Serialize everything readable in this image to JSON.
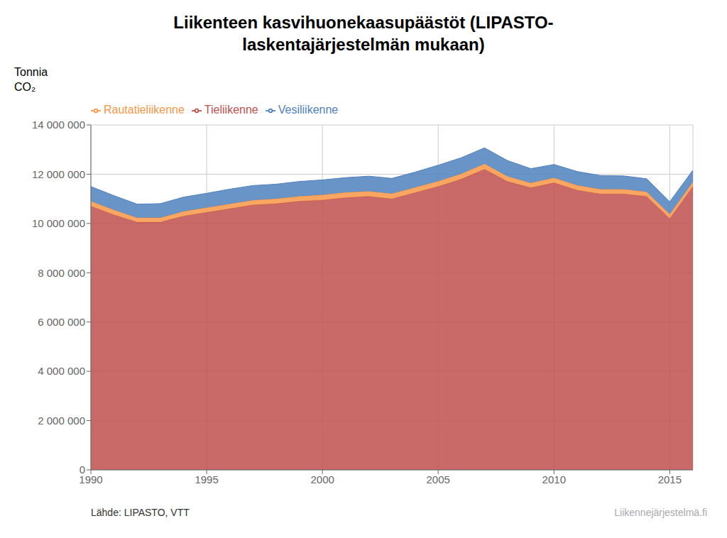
{
  "chart_data": {
    "type": "area",
    "stacked": true,
    "title": "Liikenteen kasvihuonekaasupäästöt (LIPASTO-\nlaskentajärjestelmän mukaan)",
    "y_label": "Tonnia\nCO₂",
    "annotations": [
      "Lähde: LIPASTO, VTT",
      "Liikennejärjestelmä.fi"
    ],
    "x": [
      1990,
      1991,
      1992,
      1993,
      1994,
      1995,
      1996,
      1997,
      1998,
      1999,
      2000,
      2001,
      2002,
      2003,
      2004,
      2005,
      2006,
      2007,
      2008,
      2009,
      2010,
      2011,
      2012,
      2013,
      2014,
      2015,
      2016
    ],
    "series": [
      {
        "name": "Tieliikenne",
        "color": "#C0504D",
        "values": [
          10700000,
          10350000,
          10050000,
          10050000,
          10300000,
          10450000,
          10600000,
          10750000,
          10800000,
          10900000,
          10950000,
          11050000,
          11100000,
          11000000,
          11250000,
          11500000,
          11800000,
          12200000,
          11700000,
          11450000,
          11650000,
          11350000,
          11200000,
          11200000,
          11100000,
          10200000,
          11500000
        ]
      },
      {
        "name": "Rautatieliikenne",
        "color": "#F79646",
        "values": [
          200000,
          200000,
          185000,
          185000,
          190000,
          195000,
          195000,
          200000,
          205000,
          205000,
          210000,
          210000,
          210000,
          210000,
          215000,
          215000,
          220000,
          220000,
          210000,
          195000,
          205000,
          200000,
          195000,
          190000,
          185000,
          175000,
          185000
        ]
      },
      {
        "name": "Vesiliikenne",
        "color": "#4F81BD",
        "values": [
          600000,
          580000,
          550000,
          570000,
          580000,
          580000,
          600000,
          590000,
          590000,
          600000,
          610000,
          600000,
          610000,
          620000,
          620000,
          650000,
          650000,
          650000,
          640000,
          580000,
          540000,
          560000,
          550000,
          540000,
          530000,
          510000,
          480000
        ]
      }
    ],
    "xlim": [
      1990,
      2016
    ],
    "xticks": [
      1990,
      1995,
      2000,
      2005,
      2010,
      2015
    ],
    "ylim": [
      0,
      14000000
    ],
    "yticks": [
      0,
      {
        "value": 2000000,
        "label": "2 000 000"
      },
      {
        "value": 4000000,
        "label": "4 000 000"
      },
      {
        "value": 6000000,
        "label": "6 000 000"
      },
      {
        "value": 8000000,
        "label": "8 000 000"
      },
      {
        "value": 10000000,
        "label": "10 000 000"
      },
      {
        "value": 12000000,
        "label": "12 000 000"
      },
      {
        "value": 14000000,
        "label": "14 000 000"
      }
    ],
    "grid": true,
    "legend": "upper left"
  }
}
